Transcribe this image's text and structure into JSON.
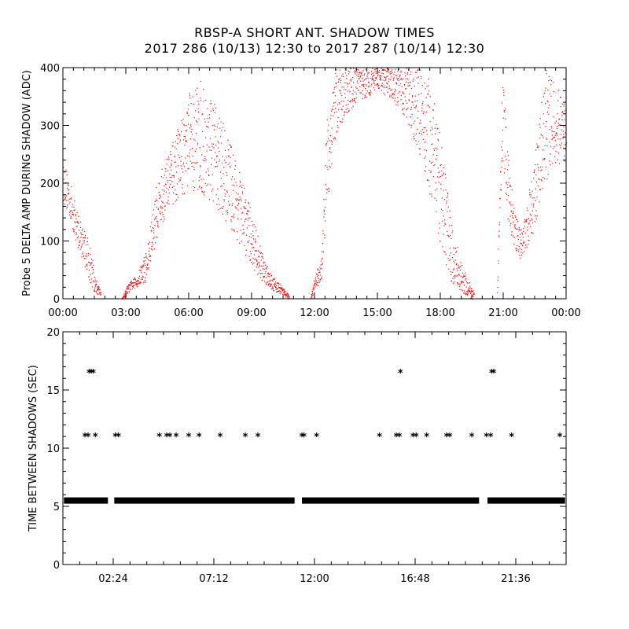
{
  "title": "RBSP-A SHORT ANT. SHADOW TIMES",
  "subtitle": "2017 286 (10/13) 12:30 to 2017 287 (10/14) 12:30",
  "chart_data": [
    {
      "type": "scatter",
      "ylabel": "Probe 5 DELTA AMP DURING SHADOW (ADC)",
      "xlabel": "",
      "xlim": [
        0,
        24
      ],
      "ylim": [
        0,
        400
      ],
      "x_unit": "hours",
      "x_tick_values": [
        0,
        3,
        6,
        9,
        12,
        15,
        18,
        21,
        24
      ],
      "x_tick_labels": [
        "00:00",
        "03:00",
        "06:00",
        "09:00",
        "12:00",
        "15:00",
        "18:00",
        "21:00",
        "00:00"
      ],
      "y_tick_values": [
        0,
        100,
        200,
        300,
        400
      ],
      "y_tick_labels": [
        "0",
        "100",
        "200",
        "300",
        "400"
      ],
      "color": "#ff0000",
      "envelope": {
        "x": [
          0,
          0.3,
          0.6,
          1.0,
          1.3,
          1.5,
          1.8,
          2.1,
          2.4,
          2.6,
          2.8,
          3.0,
          3.2,
          3.5,
          4.0,
          4.5,
          5.0,
          5.5,
          6.0,
          6.5,
          7.0,
          7.5,
          8.0,
          8.5,
          9.0,
          9.5,
          10.0,
          10.5,
          10.8,
          11.1,
          11.5,
          11.8,
          12.0,
          12.3,
          12.6,
          13.0,
          13.5,
          14.0,
          14.5,
          15.0,
          15.5,
          16.0,
          16.5,
          17.0,
          17.5,
          18.0,
          18.5,
          19.0,
          19.5,
          19.8,
          20.1,
          20.4,
          20.7,
          20.95,
          21.2,
          21.5,
          21.8,
          22.0,
          22.5,
          23.0,
          23.5,
          24.0
        ],
        "lo": [
          170,
          140,
          100,
          60,
          25,
          10,
          5,
          0,
          0,
          0,
          0,
          5,
          15,
          20,
          30,
          110,
          150,
          175,
          185,
          180,
          170,
          150,
          120,
          90,
          55,
          30,
          15,
          5,
          0,
          0,
          0,
          0,
          15,
          25,
          160,
          280,
          320,
          340,
          350,
          360,
          350,
          330,
          300,
          250,
          180,
          90,
          30,
          10,
          0,
          0,
          0,
          0,
          0,
          250,
          140,
          90,
          70,
          80,
          120,
          200,
          230,
          240
        ],
        "hi": [
          240,
          210,
          160,
          120,
          100,
          40,
          15,
          0,
          0,
          0,
          0,
          20,
          30,
          40,
          90,
          210,
          250,
          300,
          360,
          380,
          350,
          320,
          270,
          210,
          150,
          80,
          40,
          20,
          5,
          0,
          0,
          0,
          40,
          70,
          330,
          400,
          400,
          400,
          400,
          400,
          400,
          400,
          400,
          400,
          380,
          280,
          140,
          60,
          20,
          5,
          0,
          0,
          0,
          400,
          260,
          160,
          120,
          140,
          250,
          400,
          380,
          330
        ],
        "gaps": [
          [
            1.8,
            2.3
          ],
          [
            10.8,
            11.7
          ],
          [
            19.6,
            20.4
          ]
        ]
      }
    },
    {
      "type": "scatter",
      "ylabel": "TIME BETWEEN SHADOWS (SEC)",
      "xlabel": "",
      "xlim": [
        0,
        24
      ],
      "ylim": [
        0,
        20
      ],
      "x_unit": "hours",
      "x_tick_values": [
        2.4,
        7.2,
        12.0,
        16.8,
        21.6
      ],
      "x_tick_labels": [
        "02:24",
        "07:12",
        "12:00",
        "16:48",
        "21:36"
      ],
      "y_tick_values": [
        0,
        5,
        10,
        15,
        20
      ],
      "y_tick_labels": [
        "0",
        "5",
        "10",
        "15",
        "20"
      ],
      "marker": "*",
      "color": "#000000",
      "baseline": {
        "y": 5.5,
        "ranges": [
          [
            0.05,
            2.15
          ],
          [
            2.45,
            11.05
          ],
          [
            11.4,
            19.85
          ],
          [
            20.25,
            23.95
          ]
        ]
      },
      "points": [
        {
          "x": 1.05,
          "y": 11
        },
        {
          "x": 1.2,
          "y": 11
        },
        {
          "x": 1.55,
          "y": 11
        },
        {
          "x": 1.25,
          "y": 16.5
        },
        {
          "x": 1.35,
          "y": 16.5
        },
        {
          "x": 1.45,
          "y": 16.5
        },
        {
          "x": 2.5,
          "y": 11
        },
        {
          "x": 2.65,
          "y": 11
        },
        {
          "x": 4.6,
          "y": 11
        },
        {
          "x": 4.95,
          "y": 11
        },
        {
          "x": 5.1,
          "y": 11
        },
        {
          "x": 5.4,
          "y": 11
        },
        {
          "x": 6.0,
          "y": 11
        },
        {
          "x": 6.5,
          "y": 11
        },
        {
          "x": 7.5,
          "y": 11
        },
        {
          "x": 8.7,
          "y": 11
        },
        {
          "x": 9.3,
          "y": 11
        },
        {
          "x": 11.4,
          "y": 11
        },
        {
          "x": 11.5,
          "y": 11
        },
        {
          "x": 12.1,
          "y": 11
        },
        {
          "x": 15.1,
          "y": 11
        },
        {
          "x": 15.9,
          "y": 11
        },
        {
          "x": 16.05,
          "y": 11
        },
        {
          "x": 16.1,
          "y": 16.5
        },
        {
          "x": 16.7,
          "y": 11
        },
        {
          "x": 16.85,
          "y": 11
        },
        {
          "x": 17.35,
          "y": 11
        },
        {
          "x": 18.3,
          "y": 11
        },
        {
          "x": 18.45,
          "y": 11
        },
        {
          "x": 19.5,
          "y": 11
        },
        {
          "x": 20.2,
          "y": 11
        },
        {
          "x": 20.4,
          "y": 11
        },
        {
          "x": 20.45,
          "y": 16.5
        },
        {
          "x": 20.55,
          "y": 16.5
        },
        {
          "x": 21.4,
          "y": 11
        },
        {
          "x": 23.7,
          "y": 11
        }
      ]
    }
  ]
}
